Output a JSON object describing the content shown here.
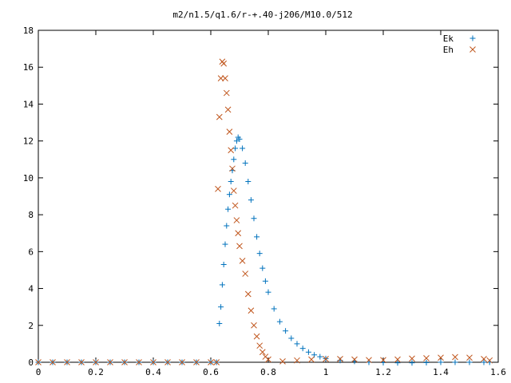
{
  "chart_data": {
    "type": "scatter",
    "title": "m2/n1.5/q1.6/r-+.40-j206/M10.0/512",
    "xlabel": "",
    "ylabel": "",
    "xlim": [
      0,
      1.6
    ],
    "ylim": [
      0,
      18
    ],
    "x_ticks": [
      "0",
      "0.2",
      "0.4",
      "0.6",
      "0.8",
      "1",
      "1.2",
      "1.4",
      "1.6"
    ],
    "y_ticks": [
      "0",
      "2",
      "4",
      "6",
      "8",
      "10",
      "12",
      "14",
      "16",
      "18"
    ],
    "grid": false,
    "legend_position": "top-right",
    "series": [
      {
        "name": "Ek",
        "marker": "plus",
        "color": "#0072bd",
        "x": [
          0.0,
          0.05,
          0.1,
          0.15,
          0.2,
          0.25,
          0.3,
          0.35,
          0.4,
          0.45,
          0.5,
          0.55,
          0.6,
          0.62,
          0.63,
          0.635,
          0.64,
          0.645,
          0.65,
          0.655,
          0.66,
          0.665,
          0.67,
          0.675,
          0.68,
          0.685,
          0.69,
          0.695,
          0.7,
          0.71,
          0.72,
          0.73,
          0.74,
          0.75,
          0.76,
          0.77,
          0.78,
          0.79,
          0.8,
          0.82,
          0.84,
          0.86,
          0.88,
          0.9,
          0.92,
          0.94,
          0.96,
          0.98,
          1.0,
          1.05,
          1.1,
          1.15,
          1.2,
          1.25,
          1.3,
          1.35,
          1.4,
          1.45,
          1.5,
          1.55,
          1.57
        ],
        "y": [
          0,
          0,
          0,
          0,
          0,
          0,
          0,
          0,
          0,
          0,
          0,
          0,
          0,
          0,
          2.1,
          3.0,
          4.2,
          5.3,
          6.4,
          7.4,
          8.3,
          9.1,
          9.8,
          10.4,
          11.0,
          11.6,
          12.0,
          12.2,
          12.1,
          11.6,
          10.8,
          9.8,
          8.8,
          7.8,
          6.8,
          5.9,
          5.1,
          4.4,
          3.8,
          2.9,
          2.2,
          1.7,
          1.3,
          1.0,
          0.75,
          0.55,
          0.4,
          0.3,
          0.2,
          0.1,
          0.05,
          0,
          -0.02,
          -0.03,
          -0.03,
          -0.02,
          0,
          0,
          0,
          0,
          0
        ]
      },
      {
        "name": "Eh",
        "marker": "cross",
        "color": "#c0561d",
        "x": [
          0.0,
          0.05,
          0.1,
          0.15,
          0.2,
          0.25,
          0.3,
          0.35,
          0.4,
          0.45,
          0.5,
          0.55,
          0.6,
          0.62,
          0.625,
          0.63,
          0.635,
          0.64,
          0.645,
          0.65,
          0.655,
          0.66,
          0.665,
          0.67,
          0.675,
          0.68,
          0.685,
          0.69,
          0.695,
          0.7,
          0.71,
          0.72,
          0.73,
          0.74,
          0.75,
          0.76,
          0.77,
          0.78,
          0.79,
          0.8,
          0.85,
          0.9,
          0.95,
          1.0,
          1.05,
          1.1,
          1.15,
          1.2,
          1.25,
          1.3,
          1.35,
          1.4,
          1.45,
          1.5,
          1.55,
          1.57
        ],
        "y": [
          0,
          0,
          0,
          0,
          0,
          0,
          0,
          0,
          0,
          0,
          0,
          0,
          0,
          0,
          9.4,
          13.3,
          15.4,
          16.3,
          16.2,
          15.4,
          14.6,
          13.7,
          12.5,
          11.5,
          10.5,
          9.3,
          8.5,
          7.7,
          7.0,
          6.3,
          5.5,
          4.8,
          3.7,
          2.8,
          2.0,
          1.4,
          0.9,
          0.55,
          0.3,
          0.15,
          0.05,
          0.1,
          0.15,
          0.18,
          0.18,
          0.15,
          0.12,
          0.12,
          0.15,
          0.2,
          0.22,
          0.25,
          0.28,
          0.25,
          0.18,
          0.1
        ]
      }
    ]
  }
}
